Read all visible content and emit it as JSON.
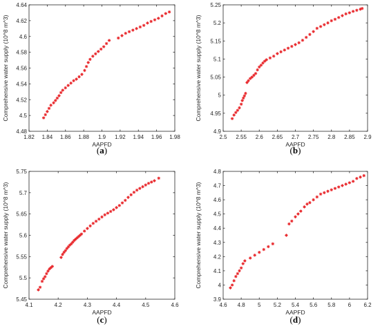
{
  "marker_color": "#e8262a",
  "chart_data": [
    {
      "type": "scatter",
      "caption": "a",
      "xlabel": "AAPFD",
      "ylabel": "Comprehensive water supply (10^8 m^3)",
      "xlim": [
        1.82,
        1.98
      ],
      "ylim": [
        4.48,
        4.64
      ],
      "xticks": [
        "1.82",
        "1.84",
        "1.86",
        "1.88",
        "1.9",
        "1.92",
        "1.94",
        "1.96",
        "1.98"
      ],
      "yticks": [
        "4.48",
        "4.5",
        "4.52",
        "4.54",
        "4.56",
        "4.58",
        "4.6",
        "4.62",
        "4.64"
      ],
      "points": [
        [
          1.836,
          4.497
        ],
        [
          1.838,
          4.501
        ],
        [
          1.84,
          4.505
        ],
        [
          1.842,
          4.509
        ],
        [
          1.844,
          4.513
        ],
        [
          1.847,
          4.516
        ],
        [
          1.849,
          4.519
        ],
        [
          1.851,
          4.522
        ],
        [
          1.853,
          4.525
        ],
        [
          1.855,
          4.529
        ],
        [
          1.857,
          4.532
        ],
        [
          1.86,
          4.535
        ],
        [
          1.863,
          4.538
        ],
        [
          1.866,
          4.541
        ],
        [
          1.869,
          4.544
        ],
        [
          1.872,
          4.546
        ],
        [
          1.875,
          4.549
        ],
        [
          1.878,
          4.552
        ],
        [
          1.881,
          4.557
        ],
        [
          1.883,
          4.562
        ],
        [
          1.885,
          4.567
        ],
        [
          1.887,
          4.571
        ],
        [
          1.89,
          4.575
        ],
        [
          1.893,
          4.578
        ],
        [
          1.896,
          4.581
        ],
        [
          1.899,
          4.584
        ],
        [
          1.902,
          4.587
        ],
        [
          1.905,
          4.591
        ],
        [
          1.908,
          4.595
        ],
        [
          1.918,
          4.598
        ],
        [
          1.922,
          4.601
        ],
        [
          1.926,
          4.604
        ],
        [
          1.93,
          4.606
        ],
        [
          1.934,
          4.608
        ],
        [
          1.938,
          4.61
        ],
        [
          1.942,
          4.612
        ],
        [
          1.946,
          4.614
        ],
        [
          1.95,
          4.617
        ],
        [
          1.954,
          4.619
        ],
        [
          1.958,
          4.621
        ],
        [
          1.962,
          4.623
        ],
        [
          1.966,
          4.626
        ],
        [
          1.97,
          4.629
        ],
        [
          1.974,
          4.631
        ]
      ]
    },
    {
      "type": "scatter",
      "caption": "b",
      "xlabel": "AAPFD",
      "ylabel": "Comprehensive water supply (10^8 m^3)",
      "xlim": [
        2.5,
        2.9
      ],
      "ylim": [
        4.9,
        5.25
      ],
      "xticks": [
        "2.5",
        "2.55",
        "2.6",
        "2.65",
        "2.7",
        "2.75",
        "2.8",
        "2.85",
        "2.9"
      ],
      "yticks": [
        "4.9",
        "4.95",
        "5",
        "5.05",
        "5.1",
        "5.15",
        "5.2",
        "5.25"
      ],
      "points": [
        [
          2.525,
          4.935
        ],
        [
          2.53,
          4.945
        ],
        [
          2.535,
          4.952
        ],
        [
          2.54,
          4.958
        ],
        [
          2.545,
          4.965
        ],
        [
          2.55,
          4.975
        ],
        [
          2.553,
          4.985
        ],
        [
          2.556,
          4.992
        ],
        [
          2.559,
          4.998
        ],
        [
          2.562,
          5.005
        ],
        [
          2.566,
          5.035
        ],
        [
          2.57,
          5.04
        ],
        [
          2.575,
          5.046
        ],
        [
          2.58,
          5.05
        ],
        [
          2.585,
          5.055
        ],
        [
          2.59,
          5.06
        ],
        [
          2.595,
          5.07
        ],
        [
          2.6,
          5.078
        ],
        [
          2.605,
          5.083
        ],
        [
          2.61,
          5.089
        ],
        [
          2.615,
          5.094
        ],
        [
          2.62,
          5.098
        ],
        [
          2.63,
          5.103
        ],
        [
          2.64,
          5.108
        ],
        [
          2.65,
          5.115
        ],
        [
          2.66,
          5.12
        ],
        [
          2.67,
          5.125
        ],
        [
          2.68,
          5.13
        ],
        [
          2.69,
          5.135
        ],
        [
          2.7,
          5.14
        ],
        [
          2.71,
          5.145
        ],
        [
          2.72,
          5.152
        ],
        [
          2.73,
          5.16
        ],
        [
          2.74,
          5.168
        ],
        [
          2.75,
          5.176
        ],
        [
          2.76,
          5.185
        ],
        [
          2.77,
          5.19
        ],
        [
          2.78,
          5.195
        ],
        [
          2.79,
          5.2
        ],
        [
          2.8,
          5.206
        ],
        [
          2.81,
          5.21
        ],
        [
          2.82,
          5.215
        ],
        [
          2.83,
          5.22
        ],
        [
          2.84,
          5.225
        ],
        [
          2.85,
          5.228
        ],
        [
          2.86,
          5.232
        ],
        [
          2.87,
          5.235
        ],
        [
          2.88,
          5.238
        ],
        [
          2.885,
          5.24
        ]
      ]
    },
    {
      "type": "scatter",
      "caption": "c",
      "xlabel": "AAPFD",
      "ylabel": "Comprehensive water supply (10^8 m^3)",
      "xlim": [
        4.1,
        4.6
      ],
      "ylim": [
        5.45,
        5.75
      ],
      "xticks": [
        "4.1",
        "4.2",
        "4.3",
        "4.4",
        "4.5",
        "4.6"
      ],
      "yticks": [
        "5.45",
        "5.5",
        "5.55",
        "5.6",
        "5.65",
        "5.7",
        "5.75"
      ],
      "points": [
        [
          4.132,
          5.472
        ],
        [
          4.138,
          5.478
        ],
        [
          4.145,
          5.492
        ],
        [
          4.15,
          5.498
        ],
        [
          4.155,
          5.503
        ],
        [
          4.16,
          5.51
        ],
        [
          4.165,
          5.516
        ],
        [
          4.17,
          5.521
        ],
        [
          4.175,
          5.524
        ],
        [
          4.18,
          5.527
        ],
        [
          4.21,
          5.548
        ],
        [
          4.215,
          5.555
        ],
        [
          4.22,
          5.56
        ],
        [
          4.225,
          5.564
        ],
        [
          4.23,
          5.569
        ],
        [
          4.235,
          5.573
        ],
        [
          4.24,
          5.577
        ],
        [
          4.245,
          5.58
        ],
        [
          4.25,
          5.584
        ],
        [
          4.255,
          5.588
        ],
        [
          4.26,
          5.591
        ],
        [
          4.265,
          5.594
        ],
        [
          4.27,
          5.597
        ],
        [
          4.275,
          5.6
        ],
        [
          4.28,
          5.603
        ],
        [
          4.29,
          5.61
        ],
        [
          4.3,
          5.616
        ],
        [
          4.31,
          5.622
        ],
        [
          4.32,
          5.628
        ],
        [
          4.33,
          5.633
        ],
        [
          4.34,
          5.638
        ],
        [
          4.35,
          5.643
        ],
        [
          4.36,
          5.648
        ],
        [
          4.37,
          5.652
        ],
        [
          4.38,
          5.656
        ],
        [
          4.39,
          5.66
        ],
        [
          4.4,
          5.665
        ],
        [
          4.41,
          5.67
        ],
        [
          4.42,
          5.676
        ],
        [
          4.43,
          5.682
        ],
        [
          4.44,
          5.689
        ],
        [
          4.45,
          5.695
        ],
        [
          4.46,
          5.701
        ],
        [
          4.47,
          5.706
        ],
        [
          4.48,
          5.71
        ],
        [
          4.49,
          5.714
        ],
        [
          4.5,
          5.718
        ],
        [
          4.51,
          5.722
        ],
        [
          4.52,
          5.725
        ],
        [
          4.53,
          5.728
        ],
        [
          4.545,
          5.734
        ]
      ]
    },
    {
      "type": "scatter",
      "caption": "d",
      "xlabel": "AAPFD",
      "ylabel": "Comprehensive water supply (10^8 m^3)",
      "xlim": [
        4.6,
        6.2
      ],
      "ylim": [
        3.9,
        4.8
      ],
      "xticks": [
        "4.6",
        "4.8",
        "5",
        "5.2",
        "5.4",
        "5.6",
        "5.8",
        "6",
        "6.2"
      ],
      "yticks": [
        "3.9",
        "4",
        "4.1",
        "4.2",
        "4.3",
        "4.4",
        "4.5",
        "4.6",
        "4.7",
        "4.8"
      ],
      "points": [
        [
          4.68,
          3.98
        ],
        [
          4.7,
          4.0
        ],
        [
          4.72,
          4.03
        ],
        [
          4.74,
          4.06
        ],
        [
          4.76,
          4.08
        ],
        [
          4.78,
          4.1
        ],
        [
          4.8,
          4.12
        ],
        [
          4.82,
          4.15
        ],
        [
          4.84,
          4.17
        ],
        [
          4.9,
          4.19
        ],
        [
          4.95,
          4.21
        ],
        [
          5.0,
          4.23
        ],
        [
          5.05,
          4.25
        ],
        [
          5.1,
          4.27
        ],
        [
          5.15,
          4.29
        ],
        [
          5.3,
          4.35
        ],
        [
          5.33,
          4.43
        ],
        [
          5.36,
          4.45
        ],
        [
          5.4,
          4.48
        ],
        [
          5.43,
          4.5
        ],
        [
          5.46,
          4.52
        ],
        [
          5.5,
          4.55
        ],
        [
          5.53,
          4.57
        ],
        [
          5.56,
          4.58
        ],
        [
          5.6,
          4.6
        ],
        [
          5.64,
          4.62
        ],
        [
          5.68,
          4.64
        ],
        [
          5.72,
          4.65
        ],
        [
          5.76,
          4.66
        ],
        [
          5.8,
          4.67
        ],
        [
          5.84,
          4.68
        ],
        [
          5.88,
          4.69
        ],
        [
          5.92,
          4.7
        ],
        [
          5.96,
          4.71
        ],
        [
          6.0,
          4.72
        ],
        [
          6.04,
          4.73
        ],
        [
          6.08,
          4.75
        ],
        [
          6.12,
          4.76
        ],
        [
          6.16,
          4.77
        ]
      ]
    }
  ]
}
